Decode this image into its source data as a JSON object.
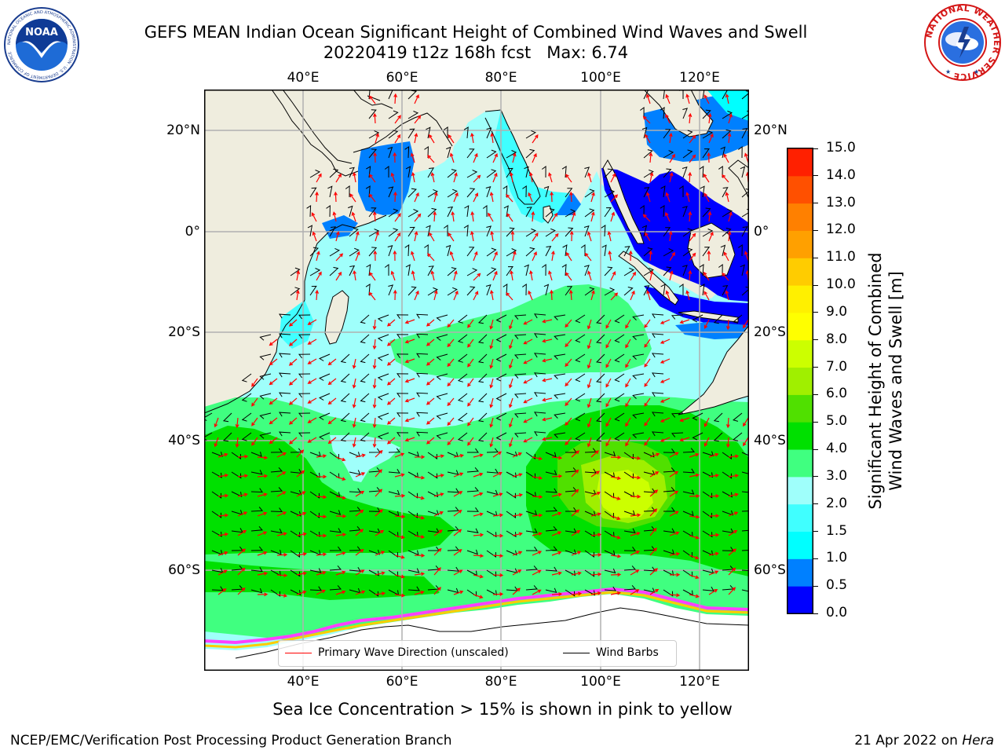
{
  "title": {
    "line1": "GEFS MEAN Indian Ocean Significant Height of Combined Wind Waves and Swell",
    "line2": "20220419 t12z 168h fcst   Max: 6.74"
  },
  "logos": {
    "noaa": {
      "center_text": "NOAA",
      "ring_text": "NATIONAL OCEANIC AND ATMOSPHERIC ADMINISTRATION · U.S. DEPARTMENT OF COMMERCE"
    },
    "nws": {
      "ring_text": "NATIONAL WEATHER SERVICE"
    }
  },
  "map": {
    "lon_range": [
      20,
      130
    ],
    "lat_range": [
      -74,
      28
    ],
    "lon_ticks": [
      "40°E",
      "60°E",
      "80°E",
      "100°E",
      "120°E"
    ],
    "lat_ticks_left": [
      "20°N",
      "0°",
      "20°S",
      "40°S",
      "60°S"
    ],
    "lat_ticks_right": [
      "20°N",
      "0°",
      "20°S",
      "40°S",
      "60°S"
    ],
    "grid": true,
    "land_color": "#efedde",
    "ocean_base_color": "#9ffffb",
    "barb_color": "#000000",
    "wave_arrow_color": "#ff0000"
  },
  "colorbar": {
    "label_line1": "Significant Height of Combined",
    "label_line2": "Wind Waves and Swell [m]",
    "ticks": [
      "0.0",
      "0.5",
      "1.0",
      "1.5",
      "2.0",
      "3.0",
      "4.0",
      "5.0",
      "6.0",
      "7.0",
      "8.0",
      "9.0",
      "10.0",
      "11.0",
      "12.0",
      "13.0",
      "14.0",
      "15.0"
    ],
    "colors": [
      "#0000ff",
      "#0080ff",
      "#00ffff",
      "#40ffff",
      "#9ffffb",
      "#40ff80",
      "#00e000",
      "#50e000",
      "#a0ef00",
      "#ccff00",
      "#ffff00",
      "#fff000",
      "#ffcc00",
      "#ffa000",
      "#ff8000",
      "#ff5000",
      "#ff2000"
    ]
  },
  "legend": {
    "items": [
      {
        "label": "Primary Wave Direction (unscaled)",
        "color": "#ff0000"
      },
      {
        "label": "Wind Barbs",
        "color": "#000000"
      }
    ]
  },
  "subtitle": "Sea Ice Concentration > 15% is shown in pink to yellow",
  "footer": {
    "left": "NCEP/EMC/Verification Post Processing Product Generation Branch",
    "right_date": "21 Apr 2022 on ",
    "right_host": "Hera"
  }
}
